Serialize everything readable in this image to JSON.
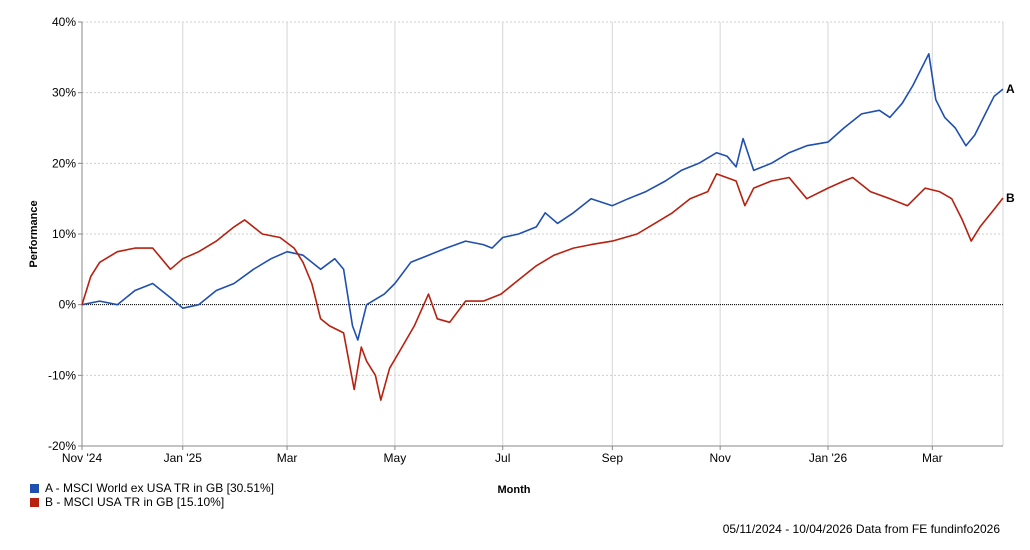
{
  "chart_data": {
    "type": "line",
    "xlabel": "Month",
    "ylabel": "Performance",
    "yunit": "%",
    "ylim": [
      -20,
      40
    ],
    "yticks": [
      -20,
      -10,
      0,
      10,
      20,
      30,
      40
    ],
    "ytick_labels": [
      "-20%",
      "-10%",
      "0%",
      "10%",
      "20%",
      "30%",
      "40%"
    ],
    "xlim": [
      "2024-11-05",
      "2026-04-10"
    ],
    "xticks": [
      {
        "date": "2024-11-05",
        "label": "Nov '24"
      },
      {
        "date": "2025-01-01",
        "label": "Jan '25"
      },
      {
        "date": "2025-03-01",
        "label": "Mar"
      },
      {
        "date": "2025-05-01",
        "label": "May"
      },
      {
        "date": "2025-07-01",
        "label": "Jul"
      },
      {
        "date": "2025-09-01",
        "label": "Sep"
      },
      {
        "date": "2025-11-01",
        "label": "Nov"
      },
      {
        "date": "2026-01-01",
        "label": "Jan '26"
      },
      {
        "date": "2026-03-01",
        "label": "Mar"
      }
    ],
    "grid": true,
    "legend_position": "bottom-left",
    "series": [
      {
        "key": "A",
        "name": "A - MSCI World ex USA TR in GB [30.51%]",
        "color": "#1f4fb0",
        "points": [
          [
            "2024-11-05",
            0
          ],
          [
            "2024-11-15",
            0.5
          ],
          [
            "2024-11-25",
            0
          ],
          [
            "2024-12-05",
            2
          ],
          [
            "2024-12-15",
            3
          ],
          [
            "2024-12-25",
            1
          ],
          [
            "2025-01-01",
            -0.5
          ],
          [
            "2025-01-10",
            0
          ],
          [
            "2025-01-20",
            2
          ],
          [
            "2025-01-30",
            3
          ],
          [
            "2025-02-10",
            5
          ],
          [
            "2025-02-20",
            6.5
          ],
          [
            "2025-03-01",
            7.5
          ],
          [
            "2025-03-10",
            7
          ],
          [
            "2025-03-20",
            5
          ],
          [
            "2025-03-28",
            6.5
          ],
          [
            "2025-04-02",
            5
          ],
          [
            "2025-04-07",
            -3
          ],
          [
            "2025-04-10",
            -5
          ],
          [
            "2025-04-15",
            0
          ],
          [
            "2025-04-25",
            1.5
          ],
          [
            "2025-05-01",
            3
          ],
          [
            "2025-05-10",
            6
          ],
          [
            "2025-05-20",
            7
          ],
          [
            "2025-05-30",
            8
          ],
          [
            "2025-06-10",
            9
          ],
          [
            "2025-06-20",
            8.5
          ],
          [
            "2025-06-25",
            8
          ],
          [
            "2025-07-01",
            9.5
          ],
          [
            "2025-07-10",
            10
          ],
          [
            "2025-07-20",
            11
          ],
          [
            "2025-07-25",
            13
          ],
          [
            "2025-08-01",
            11.5
          ],
          [
            "2025-08-10",
            13
          ],
          [
            "2025-08-20",
            15
          ],
          [
            "2025-09-01",
            14
          ],
          [
            "2025-09-10",
            15
          ],
          [
            "2025-09-20",
            16
          ],
          [
            "2025-10-01",
            17.5
          ],
          [
            "2025-10-10",
            19
          ],
          [
            "2025-10-20",
            20
          ],
          [
            "2025-10-30",
            21.5
          ],
          [
            "2025-11-05",
            21
          ],
          [
            "2025-11-10",
            19.5
          ],
          [
            "2025-11-14",
            23.5
          ],
          [
            "2025-11-20",
            19
          ],
          [
            "2025-11-30",
            20
          ],
          [
            "2025-12-10",
            21.5
          ],
          [
            "2025-12-20",
            22.5
          ],
          [
            "2026-01-01",
            23
          ],
          [
            "2026-01-10",
            25
          ],
          [
            "2026-01-20",
            27
          ],
          [
            "2026-01-30",
            27.5
          ],
          [
            "2026-02-05",
            26.5
          ],
          [
            "2026-02-12",
            28.5
          ],
          [
            "2026-02-18",
            31
          ],
          [
            "2026-02-22",
            33
          ],
          [
            "2026-02-27",
            35.5
          ],
          [
            "2026-03-03",
            29
          ],
          [
            "2026-03-08",
            26.5
          ],
          [
            "2026-03-14",
            25
          ],
          [
            "2026-03-20",
            22.5
          ],
          [
            "2026-03-25",
            24
          ],
          [
            "2026-03-31",
            27
          ],
          [
            "2026-04-05",
            29.5
          ],
          [
            "2026-04-10",
            30.51
          ]
        ]
      },
      {
        "key": "B",
        "name": "B - MSCI USA TR in GB [15.10%]",
        "color": "#b8200f",
        "points": [
          [
            "2024-11-05",
            0
          ],
          [
            "2024-11-10",
            4
          ],
          [
            "2024-11-15",
            6
          ],
          [
            "2024-11-25",
            7.5
          ],
          [
            "2024-12-05",
            8
          ],
          [
            "2024-12-15",
            8
          ],
          [
            "2024-12-25",
            5
          ],
          [
            "2025-01-01",
            6.5
          ],
          [
            "2025-01-10",
            7.5
          ],
          [
            "2025-01-20",
            9
          ],
          [
            "2025-01-30",
            11
          ],
          [
            "2025-02-05",
            12
          ],
          [
            "2025-02-15",
            10
          ],
          [
            "2025-02-25",
            9.5
          ],
          [
            "2025-03-05",
            8
          ],
          [
            "2025-03-10",
            6
          ],
          [
            "2025-03-15",
            3
          ],
          [
            "2025-03-20",
            -2
          ],
          [
            "2025-03-25",
            -3
          ],
          [
            "2025-04-02",
            -4
          ],
          [
            "2025-04-05",
            -8
          ],
          [
            "2025-04-08",
            -12
          ],
          [
            "2025-04-12",
            -6
          ],
          [
            "2025-04-15",
            -8
          ],
          [
            "2025-04-20",
            -10
          ],
          [
            "2025-04-23",
            -13.5
          ],
          [
            "2025-04-28",
            -9
          ],
          [
            "2025-05-05",
            -6
          ],
          [
            "2025-05-12",
            -3
          ],
          [
            "2025-05-20",
            1.5
          ],
          [
            "2025-05-25",
            -2
          ],
          [
            "2025-06-01",
            -2.5
          ],
          [
            "2025-06-10",
            0.5
          ],
          [
            "2025-06-20",
            0.5
          ],
          [
            "2025-06-30",
            1.5
          ],
          [
            "2025-07-10",
            3.5
          ],
          [
            "2025-07-20",
            5.5
          ],
          [
            "2025-07-30",
            7
          ],
          [
            "2025-08-10",
            8
          ],
          [
            "2025-08-20",
            8.5
          ],
          [
            "2025-09-01",
            9
          ],
          [
            "2025-09-15",
            10
          ],
          [
            "2025-09-25",
            11.5
          ],
          [
            "2025-10-05",
            13
          ],
          [
            "2025-10-15",
            15
          ],
          [
            "2025-10-25",
            16
          ],
          [
            "2025-10-30",
            18.5
          ],
          [
            "2025-11-10",
            17.5
          ],
          [
            "2025-11-15",
            14
          ],
          [
            "2025-11-20",
            16.5
          ],
          [
            "2025-11-30",
            17.5
          ],
          [
            "2025-12-10",
            18
          ],
          [
            "2025-12-20",
            15
          ],
          [
            "2026-01-01",
            16.5
          ],
          [
            "2026-01-10",
            17.5
          ],
          [
            "2026-01-15",
            18
          ],
          [
            "2026-01-25",
            16
          ],
          [
            "2026-02-05",
            15
          ],
          [
            "2026-02-15",
            14
          ],
          [
            "2026-02-25",
            16.5
          ],
          [
            "2026-03-05",
            16
          ],
          [
            "2026-03-12",
            15
          ],
          [
            "2026-03-18",
            12
          ],
          [
            "2026-03-23",
            9
          ],
          [
            "2026-03-28",
            11
          ],
          [
            "2026-04-05",
            13.5
          ],
          [
            "2026-04-10",
            15.1
          ]
        ]
      }
    ],
    "reference_line": {
      "y": 0,
      "style": "dotted",
      "color": "#000000"
    }
  },
  "footer": {
    "source_text": "05/11/2024 - 10/04/2026 Data from FE fundinfo2026"
  }
}
